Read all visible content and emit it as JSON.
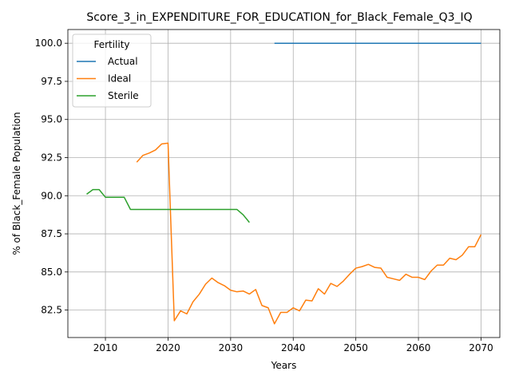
{
  "chart_data": {
    "type": "line",
    "title": "Score_3_in_EXPENDITURE_FOR_EDUCATION_for_Black_Female_Q3_IQ",
    "xlabel": "Years",
    "ylabel": "% of Black_Female Population",
    "xlim": [
      2004,
      2073
    ],
    "ylim": [
      80.7,
      100.9
    ],
    "xticks": [
      2010,
      2020,
      2030,
      2040,
      2050,
      2060,
      2070
    ],
    "yticks": [
      82.5,
      85.0,
      87.5,
      90.0,
      92.5,
      95.0,
      97.5,
      100.0
    ],
    "xtick_labels": [
      "2010",
      "2020",
      "2030",
      "2040",
      "2050",
      "2060",
      "2070"
    ],
    "ytick_labels": [
      "82.5",
      "85.0",
      "87.5",
      "90.0",
      "92.5",
      "95.0",
      "97.5",
      "100.0"
    ],
    "grid": true,
    "legend": {
      "title": "Fertility",
      "position": "top-left"
    },
    "series": [
      {
        "name": "Actual",
        "color": "#1f77b4",
        "x": [
          2037,
          2070
        ],
        "y": [
          100.0,
          100.0
        ]
      },
      {
        "name": "Ideal",
        "color": "#ff7f0e",
        "x": [
          2015,
          2016,
          2017,
          2018,
          2019,
          2020,
          2021,
          2022,
          2023,
          2024,
          2025,
          2026,
          2027,
          2028,
          2029,
          2030,
          2031,
          2032,
          2033,
          2034,
          2035,
          2036,
          2037,
          2038,
          2039,
          2040,
          2041,
          2042,
          2043,
          2044,
          2045,
          2046,
          2047,
          2048,
          2049,
          2050,
          2051,
          2052,
          2053,
          2054,
          2055,
          2056,
          2057,
          2058,
          2059,
          2060,
          2061,
          2062,
          2063,
          2064,
          2065,
          2066,
          2067,
          2068,
          2069,
          2070
        ],
        "y": [
          92.2,
          92.65,
          92.8,
          93.0,
          93.4,
          93.45,
          81.8,
          82.45,
          82.25,
          83.05,
          83.55,
          84.2,
          84.6,
          84.3,
          84.1,
          83.8,
          83.7,
          83.75,
          83.55,
          83.85,
          82.8,
          82.65,
          81.6,
          82.35,
          82.35,
          82.65,
          82.45,
          83.15,
          83.1,
          83.9,
          83.55,
          84.25,
          84.05,
          84.4,
          84.85,
          85.25,
          85.35,
          85.5,
          85.3,
          85.25,
          84.65,
          84.55,
          84.45,
          84.85,
          84.65,
          84.65,
          84.5,
          85.05,
          85.45,
          85.45,
          85.9,
          85.8,
          86.1,
          86.65,
          86.65,
          87.45
        ]
      },
      {
        "name": "Sterile",
        "color": "#2ca02c",
        "x": [
          2007,
          2008,
          2009,
          2010,
          2011,
          2012,
          2013,
          2014,
          2015,
          2020,
          2025,
          2030,
          2031,
          2032,
          2033
        ],
        "y": [
          90.1,
          90.4,
          90.4,
          89.9,
          89.9,
          89.9,
          89.9,
          89.1,
          89.1,
          89.1,
          89.1,
          89.1,
          89.1,
          88.75,
          88.25
        ]
      }
    ]
  }
}
